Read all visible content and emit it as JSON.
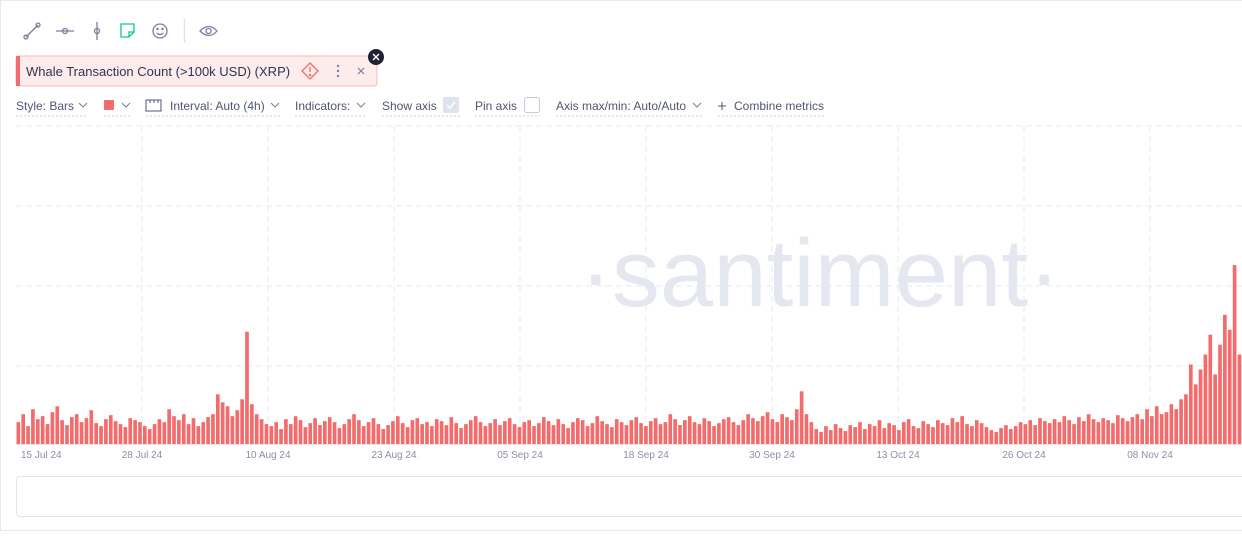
{
  "metric": {
    "title": "Whale Transaction Count (>100k USD) (XRP)"
  },
  "settings": {
    "style": "Style: Bars",
    "interval": "Interval: Auto (4h)",
    "indicators": "Indicators:",
    "show_axis": "Show axis",
    "pin_axis": "Pin axis",
    "axis_range": "Axis max/min: Auto/Auto",
    "combine": "Combine metrics"
  },
  "watermark": "·santiment·",
  "chart_data": {
    "type": "bar",
    "color": "#f46b6b",
    "ylim": [
      0,
      320
    ],
    "xtick_labels": [
      "15 Jul 24",
      "28 Jul 24",
      "10 Aug 24",
      "23 Aug 24",
      "05 Sep 24",
      "18 Sep 24",
      "30 Sep 24",
      "13 Oct 24",
      "26 Oct 24",
      "08 Nov 24"
    ],
    "values": [
      22,
      30,
      18,
      35,
      25,
      28,
      20,
      32,
      38,
      24,
      19,
      27,
      30,
      22,
      26,
      34,
      21,
      18,
      25,
      29,
      23,
      20,
      17,
      26,
      24,
      22,
      18,
      15,
      20,
      25,
      22,
      35,
      28,
      24,
      30,
      20,
      26,
      18,
      22,
      27,
      30,
      50,
      42,
      38,
      28,
      34,
      45,
      113,
      40,
      30,
      25,
      20,
      18,
      22,
      15,
      25,
      20,
      28,
      24,
      17,
      21,
      26,
      19,
      23,
      27,
      22,
      16,
      20,
      25,
      30,
      24,
      18,
      22,
      26,
      20,
      15,
      19,
      23,
      28,
      21,
      17,
      24,
      26,
      20,
      22,
      18,
      25,
      23,
      19,
      27,
      21,
      16,
      20,
      24,
      28,
      22,
      18,
      21,
      25,
      19,
      23,
      26,
      20,
      17,
      22,
      24,
      18,
      21,
      27,
      23,
      19,
      25,
      20,
      16,
      22,
      26,
      24,
      18,
      21,
      28,
      23,
      20,
      17,
      25,
      22,
      19,
      24,
      27,
      21,
      18,
      23,
      26,
      20,
      22,
      30,
      25,
      19,
      24,
      28,
      22,
      20,
      26,
      23,
      18,
      21,
      25,
      27,
      22,
      19,
      24,
      30,
      26,
      23,
      28,
      32,
      25,
      22,
      30,
      27,
      24,
      35,
      53,
      30,
      22,
      15,
      12,
      18,
      14,
      20,
      16,
      13,
      19,
      17,
      22,
      15,
      20,
      18,
      24,
      16,
      21,
      19,
      14,
      22,
      25,
      18,
      16,
      23,
      20,
      17,
      24,
      21,
      19,
      26,
      22,
      28,
      20,
      18,
      24,
      21,
      17,
      14,
      12,
      16,
      19,
      15,
      18,
      22,
      20,
      24,
      19,
      26,
      23,
      21,
      25,
      22,
      28,
      24,
      20,
      27,
      23,
      30,
      25,
      22,
      26,
      24,
      21,
      29,
      26,
      23,
      27,
      30,
      25,
      35,
      28,
      38,
      30,
      32,
      40,
      35,
      45,
      50,
      80,
      60,
      75,
      90,
      110,
      70,
      100,
      130,
      115,
      180,
      90
    ]
  }
}
